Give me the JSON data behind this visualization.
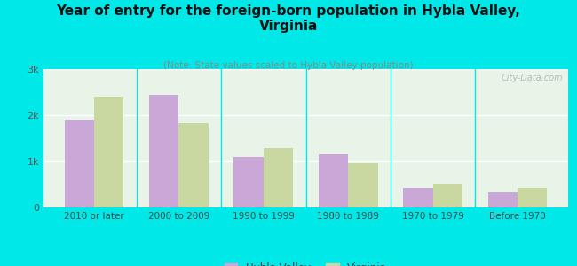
{
  "title": "Year of entry for the foreign-born population in Hybla Valley,\nVirginia",
  "subtitle": "(Note: State values scaled to Hybla Valley population)",
  "categories": [
    "2010 or later",
    "2000 to 2009",
    "1990 to 1999",
    "1980 to 1989",
    "1970 to 1979",
    "Before 1970"
  ],
  "hybla_valley": [
    1900,
    2450,
    1100,
    1150,
    420,
    330
  ],
  "virginia": [
    2400,
    1820,
    1280,
    960,
    500,
    430
  ],
  "hybla_color": "#c9a8d8",
  "virginia_color": "#c8d8a0",
  "background_color": "#00e8e8",
  "plot_bg": "#e8f4e8",
  "ylim": [
    0,
    3000
  ],
  "yticks": [
    0,
    1000,
    2000,
    3000
  ],
  "ytick_labels": [
    "0",
    "1k",
    "2k",
    "3k"
  ],
  "bar_width": 0.35,
  "title_fontsize": 11,
  "subtitle_fontsize": 7.5,
  "legend_labels": [
    "Hybla Valley",
    "Virginia"
  ],
  "watermark": "City-Data.com"
}
